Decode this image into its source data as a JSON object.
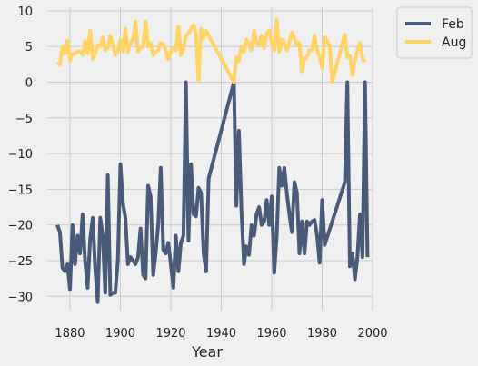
{
  "chart_data": {
    "type": "line",
    "title": "",
    "xlabel": "Year",
    "ylabel": "",
    "xlim": [
      1871,
      2000
    ],
    "ylim": [
      -32,
      10.5
    ],
    "xticks": [
      1880,
      1900,
      1920,
      1940,
      1960,
      1980,
      2000
    ],
    "yticks": [
      10,
      5,
      0,
      -5,
      -10,
      -15,
      -20,
      -25,
      -30
    ],
    "grid": true,
    "legend": "outside-top-right",
    "series": [
      {
        "name": "Feb",
        "color": "#495b78",
        "points": [
          [
            1875,
            -20
          ],
          [
            1876,
            -21
          ],
          [
            1877,
            -26
          ],
          [
            1878,
            -26.5
          ],
          [
            1879,
            -25.5
          ],
          [
            1880,
            -29
          ],
          [
            1881,
            -20
          ],
          [
            1882,
            -25.5
          ],
          [
            1883,
            -21.5
          ],
          [
            1884,
            -24
          ],
          [
            1885,
            -18.5
          ],
          [
            1886,
            -25
          ],
          [
            1887,
            -28.8
          ],
          [
            1888,
            -22
          ],
          [
            1889,
            -19
          ],
          [
            1890,
            -26
          ],
          [
            1891,
            -30.8
          ],
          [
            1892,
            -19
          ],
          [
            1893,
            -21.5
          ],
          [
            1894,
            -29.5
          ],
          [
            1895,
            -13
          ],
          [
            1896,
            -29.8
          ],
          [
            1897,
            -29.5
          ],
          [
            1898,
            -29.5
          ],
          [
            1899,
            -25
          ],
          [
            1900,
            -11.5
          ],
          [
            1901,
            -17
          ],
          [
            1902,
            -19
          ],
          [
            1903,
            -25.5
          ],
          [
            1904,
            -24.5
          ],
          [
            1905,
            -25
          ],
          [
            1906,
            -25.5
          ],
          [
            1907,
            -24.5
          ],
          [
            1908,
            -20.5
          ],
          [
            1909,
            -27
          ],
          [
            1910,
            -27.5
          ],
          [
            1911,
            -14.5
          ],
          [
            1912,
            -16
          ],
          [
            1913,
            -27
          ],
          [
            1914,
            -24
          ],
          [
            1915,
            -20
          ],
          [
            1916,
            -12
          ],
          [
            1917,
            -23.5
          ],
          [
            1918,
            -24
          ],
          [
            1919,
            -22.5
          ],
          [
            1920,
            -25.5
          ],
          [
            1921,
            -28.8
          ],
          [
            1922,
            -21.5
          ],
          [
            1923,
            -26.5
          ],
          [
            1924,
            -22.5
          ],
          [
            1925,
            -21.5
          ],
          [
            1926,
            0
          ],
          [
            1927,
            -22.2
          ],
          [
            1928,
            -11.5
          ],
          [
            1929,
            -18.5
          ],
          [
            1930,
            -18.8
          ],
          [
            1931,
            -14.8
          ],
          [
            1932,
            -15.5
          ],
          [
            1933,
            -24
          ],
          [
            1934,
            -26.5
          ],
          [
            1935,
            -13.5
          ],
          [
            1945,
            0
          ],
          [
            1946,
            -17.3
          ],
          [
            1947,
            -6.8
          ],
          [
            1948,
            -18
          ],
          [
            1949,
            -25.5
          ],
          [
            1950,
            -23
          ],
          [
            1951,
            -24.2
          ],
          [
            1952,
            -20
          ],
          [
            1953,
            -21.5
          ],
          [
            1954,
            -18.5
          ],
          [
            1955,
            -17.5
          ],
          [
            1956,
            -20
          ],
          [
            1957,
            -19.5
          ],
          [
            1958,
            -16.5
          ],
          [
            1959,
            -20
          ],
          [
            1960,
            -16
          ],
          [
            1961,
            -26.7
          ],
          [
            1962,
            -21.5
          ],
          [
            1963,
            -12
          ],
          [
            1964,
            -14.5
          ],
          [
            1965,
            -12
          ],
          [
            1966,
            -15.5
          ],
          [
            1967,
            -18.5
          ],
          [
            1968,
            -21
          ],
          [
            1969,
            -14
          ],
          [
            1970,
            -15.5
          ],
          [
            1971,
            -24
          ],
          [
            1972,
            -19.5
          ],
          [
            1973,
            -24
          ],
          [
            1974,
            -19.5
          ],
          [
            1975,
            -20
          ],
          [
            1976,
            -19.5
          ],
          [
            1977,
            -19.3
          ],
          [
            1978,
            -21.5
          ],
          [
            1979,
            -25.3
          ],
          [
            1980,
            -16.5
          ],
          [
            1981,
            -22.8
          ],
          [
            1989,
            -14
          ],
          [
            1990,
            0
          ],
          [
            1991,
            -25.8
          ],
          [
            1992,
            -24
          ],
          [
            1993,
            -27.6
          ],
          [
            1994,
            -24.5
          ],
          [
            1995,
            -18.5
          ],
          [
            1996,
            -24.5
          ],
          [
            1997,
            0
          ],
          [
            1998,
            -24.5
          ]
        ]
      },
      {
        "name": "Aug",
        "color": "#ffd364",
        "points": [
          [
            1875,
            2.8
          ],
          [
            1876,
            2.5
          ],
          [
            1877,
            5
          ],
          [
            1878,
            4
          ],
          [
            1879,
            5.8
          ],
          [
            1880,
            3
          ],
          [
            1881,
            4
          ],
          [
            1882,
            4
          ],
          [
            1883,
            4.3
          ],
          [
            1884,
            4.3
          ],
          [
            1885,
            3.8
          ],
          [
            1886,
            5.8
          ],
          [
            1887,
            4
          ],
          [
            1888,
            7.2
          ],
          [
            1889,
            3.3
          ],
          [
            1890,
            4
          ],
          [
            1891,
            5.2
          ],
          [
            1892,
            5
          ],
          [
            1893,
            6.3
          ],
          [
            1894,
            4.5
          ],
          [
            1895,
            4.8
          ],
          [
            1896,
            6.5
          ],
          [
            1897,
            5.3
          ],
          [
            1898,
            3.8
          ],
          [
            1899,
            4.3
          ],
          [
            1900,
            6
          ],
          [
            1901,
            4.3
          ],
          [
            1902,
            7.5
          ],
          [
            1903,
            4.2
          ],
          [
            1904,
            5.5
          ],
          [
            1905,
            6
          ],
          [
            1906,
            8.5
          ],
          [
            1907,
            4.3
          ],
          [
            1908,
            4.8
          ],
          [
            1909,
            5
          ],
          [
            1910,
            8.5
          ],
          [
            1911,
            5
          ],
          [
            1912,
            5.5
          ],
          [
            1913,
            3.8
          ],
          [
            1914,
            4.2
          ],
          [
            1915,
            4.5
          ],
          [
            1916,
            5.5
          ],
          [
            1917,
            5.3
          ],
          [
            1918,
            4.5
          ],
          [
            1919,
            3.2
          ],
          [
            1920,
            4.3
          ],
          [
            1921,
            4.8
          ],
          [
            1922,
            4.5
          ],
          [
            1923,
            7.8
          ],
          [
            1924,
            3.8
          ],
          [
            1925,
            4.6
          ],
          [
            1926,
            6.5
          ],
          [
            1927,
            6.8
          ],
          [
            1928,
            7.5
          ],
          [
            1929,
            8
          ],
          [
            1930,
            6.8
          ],
          [
            1931,
            0.2
          ],
          [
            1932,
            7.5
          ],
          [
            1933,
            6.2
          ],
          [
            1934,
            7.2
          ],
          [
            1945,
            0
          ],
          [
            1946,
            3.5
          ],
          [
            1947,
            3
          ],
          [
            1948,
            5
          ],
          [
            1949,
            4.2
          ],
          [
            1950,
            6
          ],
          [
            1951,
            5.5
          ],
          [
            1952,
            4.5
          ],
          [
            1953,
            7.2
          ],
          [
            1954,
            5.5
          ],
          [
            1955,
            5.2
          ],
          [
            1956,
            6.5
          ],
          [
            1957,
            4.8
          ],
          [
            1958,
            6.8
          ],
          [
            1959,
            7.3
          ],
          [
            1960,
            5.5
          ],
          [
            1961,
            4.5
          ],
          [
            1962,
            8.8
          ],
          [
            1963,
            4.3
          ],
          [
            1964,
            6
          ],
          [
            1965,
            5.5
          ],
          [
            1966,
            4.5
          ],
          [
            1967,
            5.5
          ],
          [
            1968,
            7
          ],
          [
            1969,
            6.2
          ],
          [
            1970,
            5.2
          ],
          [
            1971,
            5.5
          ],
          [
            1972,
            1.5
          ],
          [
            1973,
            3.3
          ],
          [
            1974,
            3.5
          ],
          [
            1975,
            4.5
          ],
          [
            1976,
            4.5
          ],
          [
            1977,
            6.5
          ],
          [
            1978,
            4.5
          ],
          [
            1979,
            3.5
          ],
          [
            1980,
            2
          ],
          [
            1981,
            6.3
          ],
          [
            1982,
            5.8
          ],
          [
            1983,
            5
          ],
          [
            1984,
            0
          ],
          [
            1989,
            6.7
          ],
          [
            1990,
            3.5
          ],
          [
            1991,
            3.7
          ],
          [
            1992,
            1
          ],
          [
            1993,
            3
          ],
          [
            1994,
            4.5
          ],
          [
            1995,
            5.5
          ],
          [
            1996,
            3.3
          ],
          [
            1997,
            2.8
          ]
        ]
      }
    ]
  }
}
